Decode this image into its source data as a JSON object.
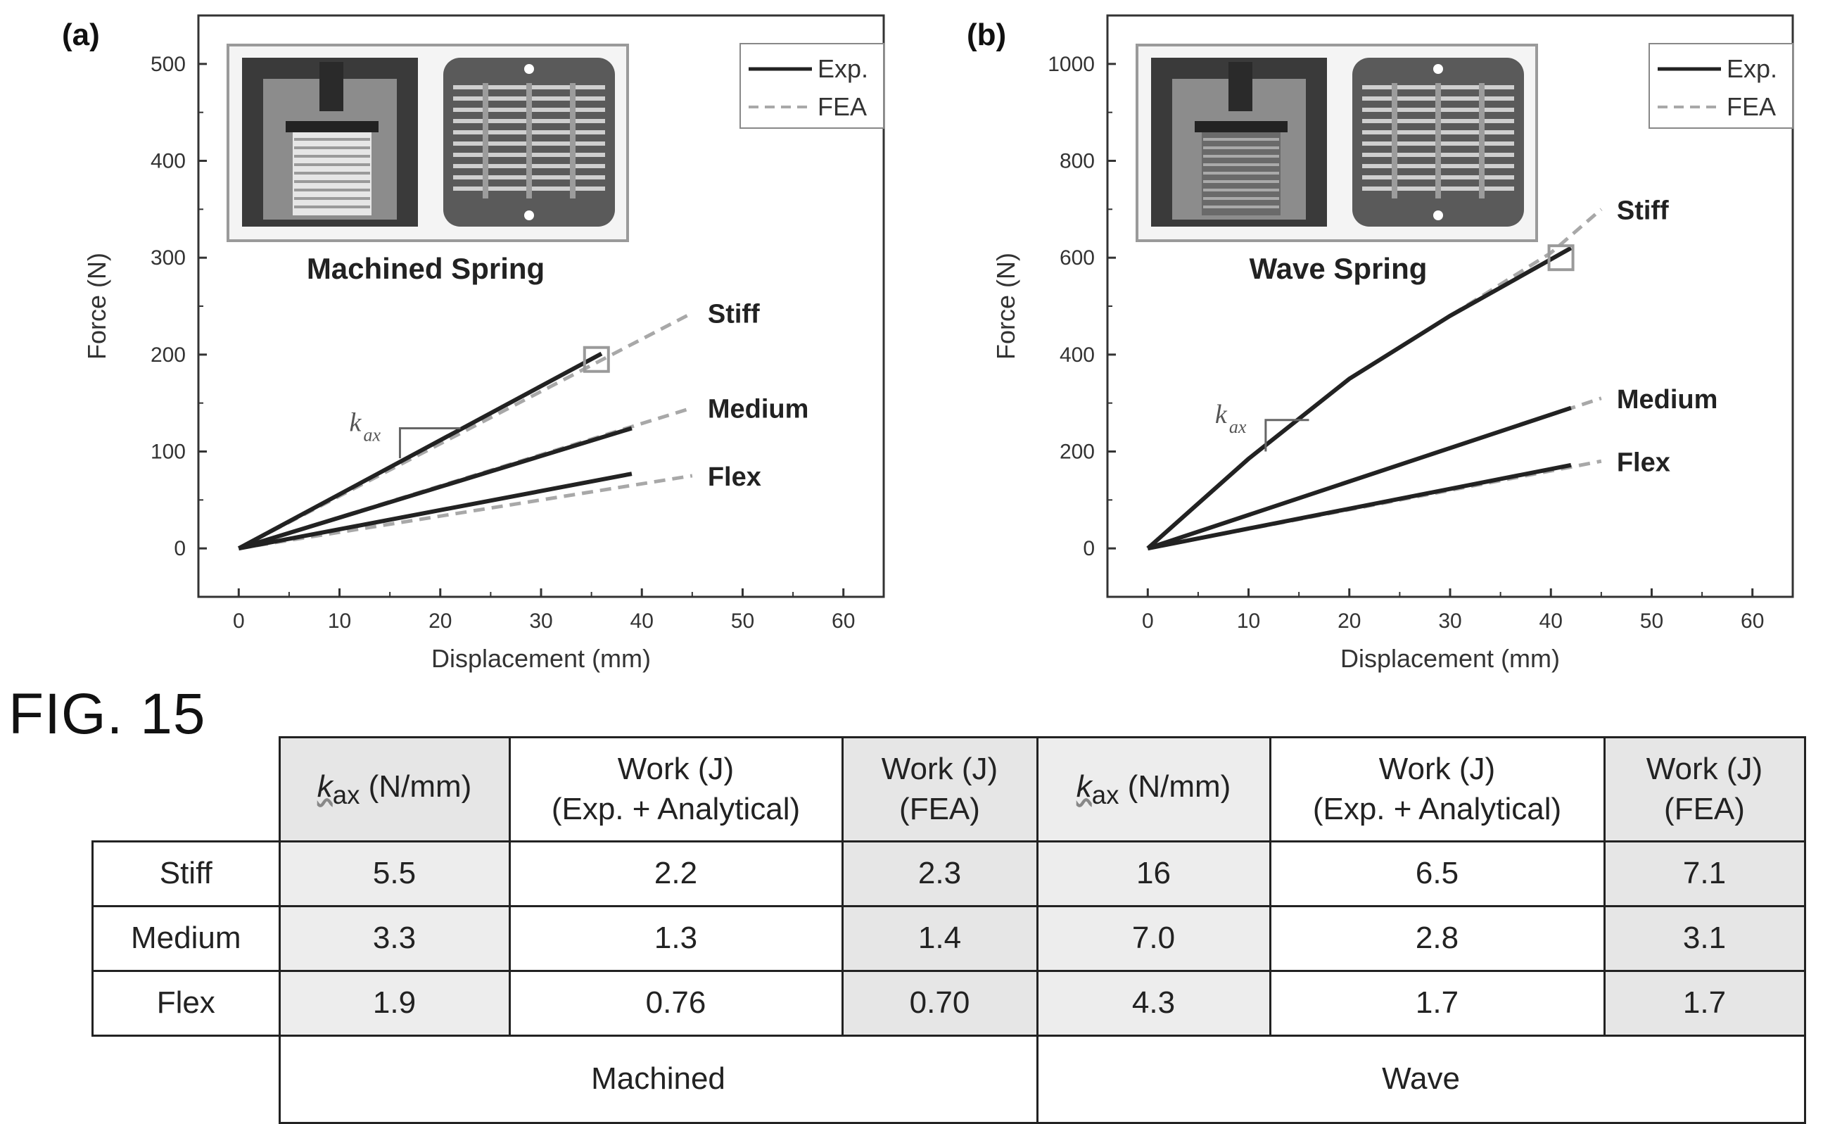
{
  "figure_label": "FIG. 15",
  "chart_data": [
    {
      "type": "line",
      "panel_label": "(a)",
      "title": "Machined Spring",
      "xlabel": "Displacement (mm)",
      "ylabel": "Force (N)",
      "xlim": [
        -4,
        64
      ],
      "ylim": [
        -50,
        550
      ],
      "xticks": [
        0,
        10,
        20,
        30,
        40,
        50,
        60
      ],
      "yticks": [
        0,
        100,
        200,
        300,
        400,
        500
      ],
      "legend": {
        "placement": "top-right",
        "entries": [
          "Exp.",
          "FEA"
        ]
      },
      "slope_label": {
        "main": "k",
        "sub": "ax"
      },
      "series": [
        {
          "name": "Stiff",
          "exp": {
            "x": [
              0,
              36
            ],
            "y": [
              0,
              201
            ]
          },
          "fea": {
            "x": [
              0,
              45
            ],
            "y": [
              0,
              243
            ]
          }
        },
        {
          "name": "Medium",
          "exp": {
            "x": [
              0,
              39
            ],
            "y": [
              0,
              124
            ]
          },
          "fea": {
            "x": [
              0,
              45
            ],
            "y": [
              0,
              145
            ]
          }
        },
        {
          "name": "Flex",
          "exp": {
            "x": [
              0,
              39
            ],
            "y": [
              0,
              77
            ]
          },
          "fea": {
            "x": [
              0,
              45
            ],
            "y": [
              0,
              75
            ]
          }
        }
      ],
      "marker_box": {
        "x": 35.5,
        "y": 195
      },
      "slope_triangle": {
        "x0": 16,
        "x1": 22,
        "y0": 93,
        "y1": 124
      },
      "colors": {
        "exp": "#222222",
        "fea": "#a8a8a8"
      }
    },
    {
      "type": "line",
      "panel_label": "(b)",
      "title": "Wave Spring",
      "xlabel": "Displacement (mm)",
      "ylabel": "Force (N)",
      "xlim": [
        -4,
        64
      ],
      "ylim": [
        -100,
        1100
      ],
      "xticks": [
        0,
        10,
        20,
        30,
        40,
        50,
        60
      ],
      "yticks": [
        0,
        200,
        400,
        600,
        800,
        1000
      ],
      "legend": {
        "placement": "top-right",
        "entries": [
          "Exp.",
          "FEA"
        ]
      },
      "slope_label": {
        "main": "k",
        "sub": "ax"
      },
      "series": [
        {
          "name": "Stiff",
          "exp": {
            "x": [
              0,
              10,
              20,
              30,
              42
            ],
            "y": [
              0,
              185,
              350,
              480,
              620
            ]
          },
          "fea": {
            "x": [
              0,
              10,
              20,
              30,
              40,
              45
            ],
            "y": [
              0,
              185,
              350,
              480,
              610,
              700
            ]
          }
        },
        {
          "name": "Medium",
          "exp": {
            "x": [
              0,
              42
            ],
            "y": [
              0,
              290
            ]
          },
          "fea": {
            "x": [
              0,
              45
            ],
            "y": [
              0,
              310
            ]
          }
        },
        {
          "name": "Flex",
          "exp": {
            "x": [
              0,
              42
            ],
            "y": [
              0,
              172
            ]
          },
          "fea": {
            "x": [
              0,
              45
            ],
            "y": [
              0,
              180
            ]
          }
        }
      ],
      "marker_box": {
        "x": 41,
        "y": 600
      },
      "slope_triangle": {
        "x0": 11.7,
        "x1": 16,
        "y0": 200,
        "y1": 265
      },
      "colors": {
        "exp": "#222222",
        "fea": "#a8a8a8"
      }
    }
  ],
  "table": {
    "headers": [
      "",
      "(N/mm)",
      "Work (J)\n(Exp. + Analytical)",
      "Work (J)\n(FEA)",
      "(N/mm)",
      "Work (J)\n(Exp. + Analytical)",
      "Work (J)\n(FEA)"
    ],
    "k_symbol": "k",
    "k_sub": "ax",
    "rows": [
      {
        "label": "Stiff",
        "values": [
          "5.5",
          "2.2",
          "2.3",
          "16",
          "6.5",
          "7.1"
        ]
      },
      {
        "label": "Medium",
        "values": [
          "3.3",
          "1.3",
          "1.4",
          "7.0",
          "2.8",
          "3.1"
        ]
      },
      {
        "label": "Flex",
        "values": [
          "1.9",
          "0.76",
          "0.70",
          "4.3",
          "1.7",
          "1.7"
        ]
      }
    ],
    "groups": [
      "Machined",
      "Wave"
    ]
  }
}
